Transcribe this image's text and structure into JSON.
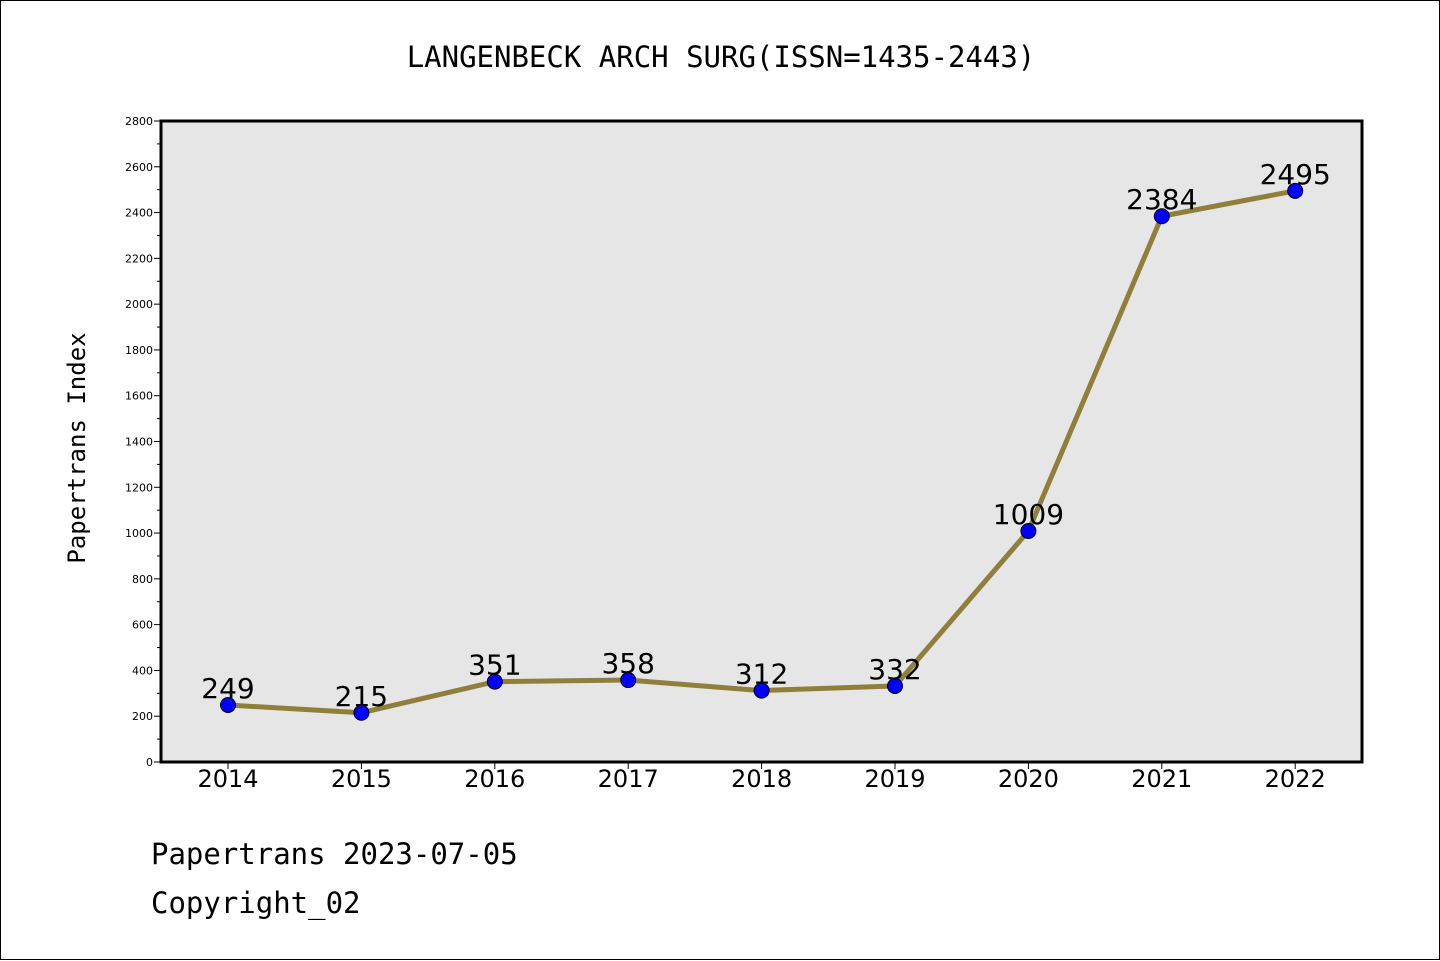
{
  "chart_data": {
    "type": "line",
    "title": "LANGENBECK ARCH SURG(ISSN=1435-2443)",
    "xlabel": "",
    "ylabel": "Papertrans Index",
    "categories": [
      "2014",
      "2015",
      "2016",
      "2017",
      "2018",
      "2019",
      "2020",
      "2021",
      "2022"
    ],
    "series": [
      {
        "values": [
          249,
          215,
          351,
          358,
          312,
          332,
          1009,
          2384,
          2495
        ]
      }
    ],
    "data_labels": [
      "249",
      "215",
      "351",
      "358",
      "312",
      "332",
      "1009",
      "2384",
      "2495"
    ],
    "ylim": [
      0,
      2800
    ],
    "yticks": [
      "0",
      "200",
      "400",
      "600",
      "800",
      "1000",
      "1200",
      "1400",
      "1600",
      "1800",
      "2000",
      "2200",
      "2400",
      "2600",
      "2800"
    ],
    "grid": false,
    "colors": {
      "line": "#8f7f3a",
      "marker": "#0000ff",
      "plot_background": "#e6e6e6"
    }
  },
  "footer": {
    "date_line": "Papertrans 2023-07-05",
    "copyright_line": "Copyright_02"
  }
}
